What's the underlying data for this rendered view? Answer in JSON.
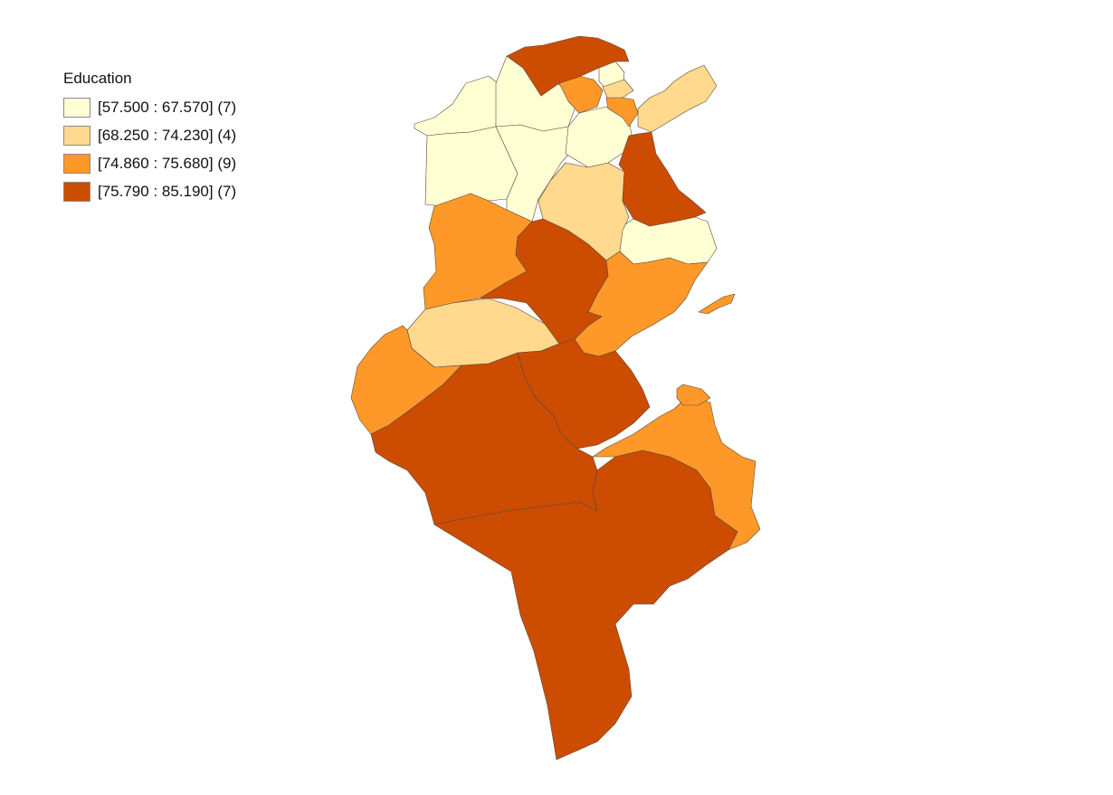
{
  "legend": {
    "title": "Education",
    "classes": [
      {
        "label": "[57.500 : 67.570] (7)",
        "color": "#ffffd4"
      },
      {
        "label": "[68.250 : 74.230] (4)",
        "color": "#fed98e"
      },
      {
        "label": "[74.860 : 75.680] (9)",
        "color": "#fe9929"
      },
      {
        "label": "[75.790 : 85.190] (7)",
        "color": "#cc4c02"
      }
    ]
  }
}
